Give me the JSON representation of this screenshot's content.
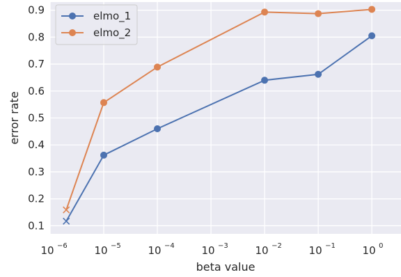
{
  "chart_data": {
    "type": "line",
    "title": "",
    "xlabel": "beta value",
    "ylabel": "error rate",
    "xscale": "log",
    "xlim": [
      1e-06,
      3.5
    ],
    "ylim": [
      0.07,
      0.93
    ],
    "x_ticks": [
      {
        "base": "10",
        "exp": "−6",
        "value": 1e-06
      },
      {
        "base": "10",
        "exp": "−5",
        "value": 1e-05
      },
      {
        "base": "10",
        "exp": "−4",
        "value": 0.0001
      },
      {
        "base": "10",
        "exp": "−3",
        "value": 0.001
      },
      {
        "base": "10",
        "exp": "−2",
        "value": 0.01
      },
      {
        "base": "10",
        "exp": "−1",
        "value": 0.1
      },
      {
        "base": "10",
        "exp": "0",
        "value": 1
      }
    ],
    "y_ticks": [
      "0.1",
      "0.2",
      "0.3",
      "0.4",
      "0.5",
      "0.6",
      "0.7",
      "0.8",
      "0.9"
    ],
    "grid": true,
    "legend_position": "top-left",
    "background_color": "#EAEAF2",
    "series": [
      {
        "name": "elmo_1",
        "color": "#4C72B0",
        "x": [
          1e-05,
          0.0001,
          0.01,
          0.1,
          1
        ],
        "y": [
          0.362,
          0.46,
          0.64,
          0.662,
          0.805
        ],
        "marker": "circle"
      },
      {
        "name": "elmo_2",
        "color": "#DD8452",
        "x": [
          1e-05,
          0.0001,
          0.01,
          0.1,
          1
        ],
        "y": [
          0.557,
          0.689,
          0.893,
          0.887,
          0.903
        ],
        "marker": "circle"
      }
    ],
    "extra_points": [
      {
        "series": "elmo_1",
        "marker": "x",
        "color": "#4C72B0",
        "from_x": 1e-05,
        "x": 2e-06,
        "y": 0.117
      },
      {
        "series": "elmo_2",
        "marker": "x",
        "color": "#DD8452",
        "from_x": 1e-05,
        "x": 2e-06,
        "y": 0.159
      }
    ]
  }
}
